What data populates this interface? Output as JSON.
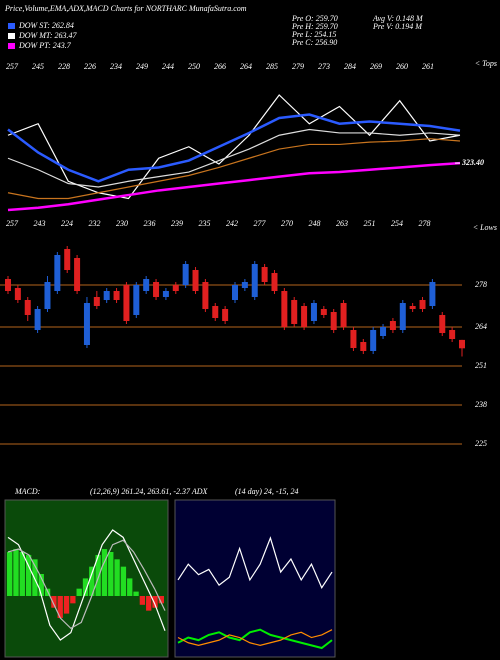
{
  "header": {
    "title": "Price,Volume,EMA,ADX,MACD Charts for NORTHARC MunafaSutra.com",
    "legend": [
      {
        "label": "DOW ST: 262.84",
        "color": "#2b5bff"
      },
      {
        "label": "DOW MT: 263.47",
        "color": "#ffffff"
      },
      {
        "label": "DOW PT: 243.7",
        "color": "#ff00ff"
      }
    ],
    "stats": [
      "Pre  O: 259.70",
      "Pre  H: 259.70",
      "Pre  L: 254.15",
      "Pre  C: 256.90",
      "Avg  V: 0.148  M",
      "Pre  V: 0.194  M"
    ]
  },
  "chart_data": [
    {
      "type": "line",
      "tops": [
        257,
        245,
        228,
        226,
        234,
        249,
        244,
        250,
        266,
        264,
        285,
        279,
        273,
        284,
        269,
        260,
        261
      ],
      "tops_label": "< Tops",
      "lows": [
        257,
        243,
        224,
        232,
        230,
        236,
        239,
        235,
        242,
        277,
        270,
        248,
        263,
        251,
        254,
        278
      ],
      "lows_label": "< Lows",
      "series": [
        {
          "color": "#ffffff",
          "values": [
            335.5,
            340.5,
            315.5,
            310.5,
            308,
            325.5,
            330.5,
            323,
            335.5,
            353,
            340.5,
            348,
            335.5,
            350.5,
            333,
            335.5
          ]
        },
        {
          "color": "#2b5bff",
          "values": [
            338,
            328,
            320.5,
            315.5,
            320.5,
            321.5,
            324.5,
            330.5,
            336.5,
            343,
            344.5,
            340.5,
            341.5,
            340.5,
            339.5,
            337.5
          ]
        },
        {
          "color": "#dddddd",
          "values": [
            325.5,
            320.5,
            314.5,
            313,
            315.5,
            317.5,
            319.5,
            324.5,
            329.5,
            335.5,
            338,
            336.5,
            336.5,
            335.5,
            336.5,
            335.5
          ]
        },
        {
          "color": "#c8741e",
          "values": [
            310.5,
            308,
            308,
            310.5,
            313,
            315.5,
            318,
            321.5,
            325.5,
            329.5,
            331.5,
            331.5,
            332.5,
            333,
            334,
            333
          ]
        },
        {
          "color": "#ff00ff",
          "values": [
            303,
            304,
            305.5,
            307.5,
            309.5,
            311.5,
            313,
            314.5,
            316,
            317.5,
            319,
            319.5,
            320.5,
            321.5,
            322.5,
            323.4
          ]
        }
      ],
      "yticks": [
        {
          "value": 323.4,
          "label": "323.40"
        }
      ]
    },
    {
      "type": "candlestick",
      "up_color": "#1f5fd6",
      "down_color": "#e02020",
      "grid": true,
      "grid_color": "#b5651d",
      "ylim": [
        220,
        291
      ],
      "yticks": [
        225,
        238,
        251,
        264,
        278
      ],
      "open": [
        280,
        277,
        273,
        263,
        270,
        276,
        290,
        287,
        258,
        274,
        273,
        276,
        278,
        268,
        276,
        279,
        274,
        278,
        278,
        283,
        279,
        271,
        270,
        273,
        277,
        274,
        284,
        282,
        276,
        273,
        271,
        266,
        270,
        269,
        272,
        263,
        259,
        256,
        261,
        266,
        263,
        271,
        273,
        271,
        268,
        263,
        259.7
      ],
      "high": [
        281,
        278,
        274,
        271,
        281,
        289,
        291,
        288,
        274,
        276,
        277,
        277,
        279,
        279,
        281,
        280,
        277,
        279,
        286,
        284,
        280,
        272,
        271,
        279,
        280,
        286,
        285,
        283,
        277,
        274,
        272,
        273,
        271,
        270,
        273,
        264,
        260,
        264,
        265,
        267,
        273,
        272,
        274,
        280,
        269,
        264,
        259.7
      ],
      "low": [
        275,
        272,
        266,
        262,
        269,
        275,
        282,
        275,
        257,
        270,
        272,
        272,
        265,
        267,
        275,
        273,
        273,
        275,
        277,
        275,
        269,
        266,
        265,
        272,
        276,
        273,
        278,
        275,
        263,
        264,
        263,
        265,
        267,
        262,
        263,
        256,
        255,
        255,
        260,
        262,
        262,
        269,
        269,
        270,
        261,
        259,
        254.15
      ],
      "close": [
        276,
        273,
        268,
        270,
        279,
        288,
        283,
        276,
        272,
        271,
        276,
        273,
        266,
        278,
        280,
        274,
        276,
        276,
        285,
        276,
        270,
        267,
        266,
        278,
        279,
        285,
        279,
        276,
        264,
        265,
        264,
        272,
        268,
        263,
        264,
        257,
        256,
        263,
        264,
        263,
        272,
        270,
        270,
        279,
        262,
        260,
        256.9
      ]
    },
    {
      "type": "macd",
      "title": "MACD:",
      "subtitle": "(12,26,9) 261.24, 263.61, -2.37 ADX",
      "background": "#0a4a0a",
      "histogram": {
        "up_color": "#22dd22",
        "down_color": "#ee2222",
        "values": [
          3,
          3.2,
          3,
          2.8,
          2.5,
          1.5,
          0.5,
          -0.8,
          -1.5,
          -1.2,
          -0.5,
          0.5,
          1.2,
          2,
          2.8,
          3.2,
          3,
          2.5,
          2,
          1.2,
          0.3,
          -0.6,
          -1,
          -0.8,
          -0.5
        ]
      },
      "series": [
        {
          "color": "#ffffff",
          "values": [
            4,
            3.5,
            2,
            0.5,
            -2,
            -3,
            -2.5,
            -0.5,
            1.5,
            3.5,
            4.5,
            4,
            2.5,
            1,
            -0.5,
            -2.37
          ]
        },
        {
          "color": "#bbbbbb",
          "values": [
            3,
            3.2,
            2.8,
            1.5,
            0,
            -1.5,
            -2.2,
            -1.8,
            0,
            2,
            3.5,
            3.8,
            3,
            1.8,
            0.5,
            -1
          ]
        }
      ]
    },
    {
      "type": "adx",
      "title": "(14 day) 24, -15, 24",
      "background": "#000033",
      "series": [
        {
          "color": "#ffffff",
          "values": [
            30,
            36,
            32,
            34,
            28,
            31,
            42,
            30,
            36,
            46,
            33,
            38,
            30,
            36,
            27,
            33
          ]
        },
        {
          "color": "#00ee00",
          "values": [
            6,
            8,
            7,
            9,
            10,
            8,
            7,
            10,
            11,
            9,
            8,
            7,
            6,
            5,
            4,
            7
          ]
        },
        {
          "color": "#ff8c00",
          "values": [
            8,
            6,
            5,
            6,
            7,
            9,
            8,
            6,
            5,
            6,
            7,
            9,
            10,
            8,
            9,
            11
          ]
        }
      ]
    }
  ]
}
